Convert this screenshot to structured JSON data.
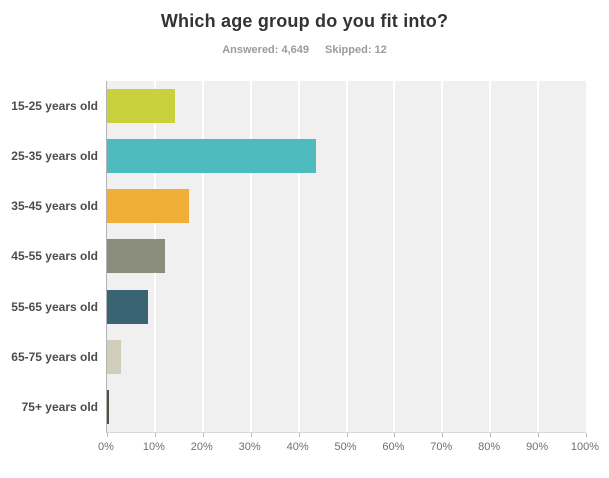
{
  "header": {
    "title": "Which age group do you fit into?",
    "answered_label": "Answered: 4,649",
    "skipped_label": "Skipped: 12"
  },
  "chart_data": {
    "type": "bar",
    "orientation": "horizontal",
    "title": "Which age group do you fit into?",
    "categories": [
      "15-25 years old",
      "25-35 years old",
      "35-45 years old",
      "45-55 years old",
      "55-65 years old",
      "65-75 years old",
      "75+ years old"
    ],
    "values": [
      14.2,
      43.7,
      17.1,
      12.1,
      8.5,
      2.9,
      0.4
    ],
    "unit": "%",
    "colors": [
      "#c9d23c",
      "#4ebcbe",
      "#f0ae37",
      "#8b8e7c",
      "#3a6471",
      "#d0cdba",
      "#4a5440"
    ],
    "xlim": [
      0,
      100
    ],
    "x_ticks": [
      "0%",
      "10%",
      "20%",
      "30%",
      "40%",
      "50%",
      "60%",
      "70%",
      "80%",
      "90%",
      "100%"
    ],
    "grid": true,
    "plot_background": "#f0f0f0",
    "gridline_color": "#ffffff",
    "legend": "none"
  }
}
